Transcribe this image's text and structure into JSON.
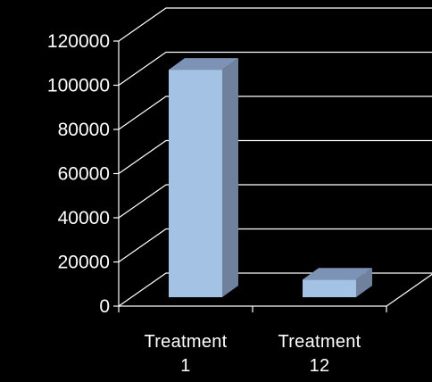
{
  "chart_data": {
    "type": "bar",
    "style": "3d",
    "categories": [
      [
        "Treatment",
        "1"
      ],
      [
        "Treatment",
        "12"
      ]
    ],
    "values": [
      103000,
      8000
    ],
    "ylim": [
      0,
      120000
    ],
    "yticks": [
      "0",
      "20000",
      "40000",
      "60000",
      "80000",
      "100000",
      "120000"
    ],
    "grid": true,
    "title": "",
    "xlabel": "",
    "ylabel": "",
    "colors": {
      "background": "#000000",
      "gridline": "#ffffff",
      "bar_front": "#a3c2e4",
      "bar_top": "#7d93b6",
      "bar_side": "#6f819d"
    }
  }
}
